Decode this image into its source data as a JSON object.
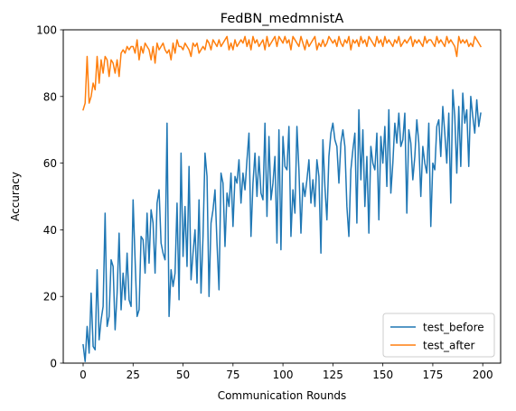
{
  "chart_data": {
    "type": "line",
    "title": "FedBN_medmnistA",
    "xlabel": "Communication Rounds",
    "ylabel": "Accuracy",
    "xlim": [
      -9.95,
      208.95
    ],
    "ylim": [
      0,
      100
    ],
    "xticks": [
      0,
      25,
      50,
      75,
      100,
      125,
      150,
      175,
      200
    ],
    "yticks": [
      0,
      20,
      40,
      60,
      80,
      100
    ],
    "grid": false,
    "legend_position": "lower-right",
    "series": [
      {
        "name": "test_before",
        "color": "#1f77b4",
        "x": [
          0,
          1,
          2,
          3,
          4,
          5,
          6,
          7,
          8,
          9,
          10,
          11,
          12,
          13,
          14,
          15,
          16,
          17,
          18,
          19,
          20,
          21,
          22,
          23,
          24,
          25,
          26,
          27,
          28,
          29,
          30,
          31,
          32,
          33,
          34,
          35,
          36,
          37,
          38,
          39,
          40,
          41,
          42,
          43,
          44,
          45,
          46,
          47,
          48,
          49,
          50,
          51,
          52,
          53,
          54,
          55,
          56,
          57,
          58,
          59,
          60,
          61,
          62,
          63,
          64,
          65,
          66,
          67,
          68,
          69,
          70,
          71,
          72,
          73,
          74,
          75,
          76,
          77,
          78,
          79,
          80,
          81,
          82,
          83,
          84,
          85,
          86,
          87,
          88,
          89,
          90,
          91,
          92,
          93,
          94,
          95,
          96,
          97,
          98,
          99,
          100,
          101,
          102,
          103,
          104,
          105,
          106,
          107,
          108,
          109,
          110,
          111,
          112,
          113,
          114,
          115,
          116,
          117,
          118,
          119,
          120,
          121,
          122,
          123,
          124,
          125,
          126,
          127,
          128,
          129,
          130,
          131,
          132,
          133,
          134,
          135,
          136,
          137,
          138,
          139,
          140,
          141,
          142,
          143,
          144,
          145,
          146,
          147,
          148,
          149,
          150,
          151,
          152,
          153,
          154,
          155,
          156,
          157,
          158,
          159,
          160,
          161,
          162,
          163,
          164,
          165,
          166,
          167,
          168,
          169,
          170,
          171,
          172,
          173,
          174,
          175,
          176,
          177,
          178,
          179,
          180,
          181,
          182,
          183,
          184,
          185,
          186,
          187,
          188,
          189,
          190,
          191,
          192,
          193,
          194,
          195,
          196,
          197,
          198,
          199
        ],
        "values": [
          5.5,
          0.5,
          11,
          3,
          21,
          5,
          4,
          28,
          7,
          13,
          17,
          45,
          11,
          14,
          31,
          29,
          10,
          21,
          39,
          16,
          27,
          19,
          33,
          19,
          17,
          49,
          31,
          14,
          16,
          38,
          37,
          27,
          45,
          30,
          46,
          42,
          27,
          48,
          52,
          36,
          33,
          31,
          72,
          14,
          28,
          23,
          27,
          48,
          19,
          63,
          32,
          47,
          29,
          59,
          25,
          33,
          40,
          24,
          49,
          21,
          38,
          63,
          56,
          20,
          42,
          46,
          52,
          36,
          22,
          57,
          54,
          35,
          51,
          47,
          57,
          41,
          56,
          54,
          61,
          48,
          57,
          52,
          61,
          69,
          38,
          54,
          63,
          50,
          62,
          51,
          49,
          72,
          44,
          68,
          49,
          54,
          62,
          36,
          70,
          34,
          68,
          59,
          58,
          71,
          38,
          52,
          45,
          71,
          58,
          39,
          54,
          50,
          55,
          61,
          48,
          55,
          47,
          61,
          56,
          33,
          67,
          53,
          43,
          62,
          69,
          72,
          67,
          65,
          54,
          66,
          70,
          65,
          47,
          38,
          58,
          64,
          69,
          42,
          76,
          55,
          70,
          47,
          62,
          39,
          65,
          60,
          58,
          69,
          43,
          68,
          60,
          71,
          53,
          76,
          51,
          60,
          72,
          66,
          75,
          65,
          67,
          75,
          45,
          70,
          66,
          55,
          62,
          73,
          66,
          50,
          65,
          60,
          57,
          72,
          41,
          60,
          58,
          71,
          73,
          62,
          77,
          69,
          60,
          75,
          48,
          82,
          74,
          57,
          77,
          59,
          81,
          72,
          76,
          59,
          80,
          74,
          69,
          79,
          71,
          75
        ]
      },
      {
        "name": "test_after",
        "color": "#ff7f0e",
        "x": [
          0,
          1,
          2,
          3,
          4,
          5,
          6,
          7,
          8,
          9,
          10,
          11,
          12,
          13,
          14,
          15,
          16,
          17,
          18,
          19,
          20,
          21,
          22,
          23,
          24,
          25,
          26,
          27,
          28,
          29,
          30,
          31,
          32,
          33,
          34,
          35,
          36,
          37,
          38,
          39,
          40,
          41,
          42,
          43,
          44,
          45,
          46,
          47,
          48,
          49,
          50,
          51,
          52,
          53,
          54,
          55,
          56,
          57,
          58,
          59,
          60,
          61,
          62,
          63,
          64,
          65,
          66,
          67,
          68,
          69,
          70,
          71,
          72,
          73,
          74,
          75,
          76,
          77,
          78,
          79,
          80,
          81,
          82,
          83,
          84,
          85,
          86,
          87,
          88,
          89,
          90,
          91,
          92,
          93,
          94,
          95,
          96,
          97,
          98,
          99,
          100,
          101,
          102,
          103,
          104,
          105,
          106,
          107,
          108,
          109,
          110,
          111,
          112,
          113,
          114,
          115,
          116,
          117,
          118,
          119,
          120,
          121,
          122,
          123,
          124,
          125,
          126,
          127,
          128,
          129,
          130,
          131,
          132,
          133,
          134,
          135,
          136,
          137,
          138,
          139,
          140,
          141,
          142,
          143,
          144,
          145,
          146,
          147,
          148,
          149,
          150,
          151,
          152,
          153,
          154,
          155,
          156,
          157,
          158,
          159,
          160,
          161,
          162,
          163,
          164,
          165,
          166,
          167,
          168,
          169,
          170,
          171,
          172,
          173,
          174,
          175,
          176,
          177,
          178,
          179,
          180,
          181,
          182,
          183,
          184,
          185,
          186,
          187,
          188,
          189,
          190,
          191,
          192,
          193,
          194,
          195,
          196,
          197,
          198,
          199
        ],
        "values": [
          76,
          78,
          92,
          78,
          80,
          84,
          82,
          92,
          84,
          91,
          87,
          92,
          91,
          86,
          91,
          90,
          87,
          91,
          86,
          93,
          94,
          93,
          95,
          94,
          95,
          95,
          93,
          97,
          91,
          95,
          93,
          96,
          95,
          94,
          91,
          95,
          90,
          96,
          94,
          95,
          96,
          94,
          93,
          94,
          91,
          96,
          93,
          97,
          95,
          95,
          94,
          96,
          95,
          94,
          92,
          96,
          95,
          96,
          93,
          94,
          95,
          94,
          97,
          96,
          94,
          97,
          96,
          95,
          97,
          95,
          96,
          97,
          98,
          94,
          96,
          94,
          97,
          95,
          96,
          97,
          96,
          98,
          95,
          97,
          94,
          98,
          96,
          97,
          95,
          96,
          97,
          94,
          98,
          95,
          96,
          97,
          98,
          95,
          98,
          97,
          96,
          98,
          96,
          97,
          94,
          98,
          97,
          96,
          95,
          98,
          96,
          94,
          97,
          95,
          96,
          97,
          98,
          94,
          96,
          95,
          97,
          95,
          96,
          98,
          97,
          96,
          97,
          95,
          98,
          96,
          95,
          97,
          96,
          98,
          94,
          97,
          96,
          97,
          95,
          98,
          96,
          97,
          95,
          98,
          97,
          96,
          95,
          98,
          96,
          97,
          95,
          98,
          96,
          97,
          96,
          95,
          97,
          96,
          98,
          95,
          96,
          97,
          96,
          97,
          98,
          95,
          97,
          96,
          97,
          96,
          95,
          98,
          96,
          97,
          97,
          96,
          95,
          98,
          96,
          97,
          96,
          95,
          98,
          96,
          97,
          96,
          95,
          92,
          98,
          96,
          97,
          96,
          97,
          95,
          96,
          95,
          98,
          97,
          96,
          95
        ]
      }
    ]
  }
}
